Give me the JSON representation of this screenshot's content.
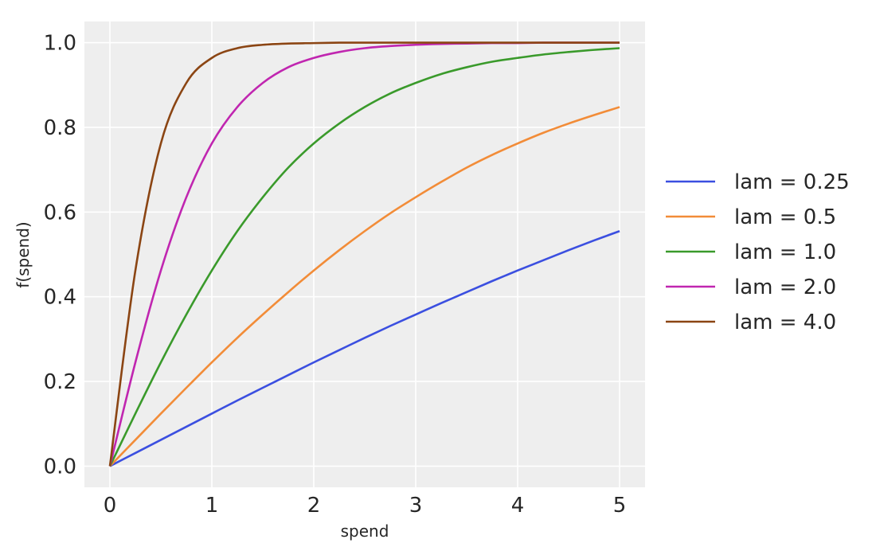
{
  "chart_data": {
    "type": "line",
    "xlabel": "spend",
    "ylabel": "f(spend)",
    "xlim": [
      -0.25,
      5.25
    ],
    "ylim": [
      -0.05,
      1.05
    ],
    "xticks": [
      "0",
      "1",
      "2",
      "3",
      "4",
      "5"
    ],
    "yticks": [
      "0.0",
      "0.2",
      "0.4",
      "0.6",
      "0.8",
      "1.0"
    ],
    "grid": true,
    "legend_position": "right",
    "background_color": "#eeeeee",
    "x": [
      0,
      0.25,
      0.5,
      0.75,
      1,
      1.25,
      1.5,
      1.75,
      2,
      2.25,
      2.5,
      2.75,
      3,
      3.25,
      3.5,
      3.75,
      4,
      4.25,
      4.5,
      4.75,
      5
    ],
    "series": [
      {
        "name": "lam = 0.25",
        "color": "#3b4fe0",
        "values": [
          0.0,
          0.031,
          0.062,
          0.093,
          0.124,
          0.155,
          0.185,
          0.215,
          0.245,
          0.274,
          0.303,
          0.331,
          0.358,
          0.385,
          0.411,
          0.437,
          0.462,
          0.486,
          0.51,
          0.533,
          0.555
        ]
      },
      {
        "name": "lam = 0.5",
        "color": "#f28c38",
        "values": [
          0.0,
          0.062,
          0.124,
          0.185,
          0.245,
          0.303,
          0.358,
          0.411,
          0.462,
          0.51,
          0.555,
          0.597,
          0.635,
          0.671,
          0.705,
          0.735,
          0.762,
          0.787,
          0.809,
          0.829,
          0.848
        ]
      },
      {
        "name": "lam = 1.0",
        "color": "#3a9a2b",
        "values": [
          0.0,
          0.124,
          0.245,
          0.358,
          0.462,
          0.555,
          0.635,
          0.705,
          0.762,
          0.809,
          0.848,
          0.88,
          0.905,
          0.926,
          0.942,
          0.955,
          0.964,
          0.972,
          0.978,
          0.983,
          0.987
        ]
      },
      {
        "name": "lam = 2.0",
        "color": "#c026b0",
        "values": [
          0.0,
          0.245,
          0.462,
          0.635,
          0.762,
          0.848,
          0.905,
          0.942,
          0.964,
          0.978,
          0.987,
          0.992,
          0.995,
          0.997,
          0.998,
          0.999,
          0.999,
          1.0,
          1.0,
          1.0,
          1.0
        ]
      },
      {
        "name": "lam = 4.0",
        "color": "#8b4513",
        "values": [
          0.0,
          0.462,
          0.762,
          0.905,
          0.964,
          0.987,
          0.995,
          0.998,
          0.999,
          1.0,
          1.0,
          1.0,
          1.0,
          1.0,
          1.0,
          1.0,
          1.0,
          1.0,
          1.0,
          1.0,
          1.0
        ]
      }
    ]
  }
}
